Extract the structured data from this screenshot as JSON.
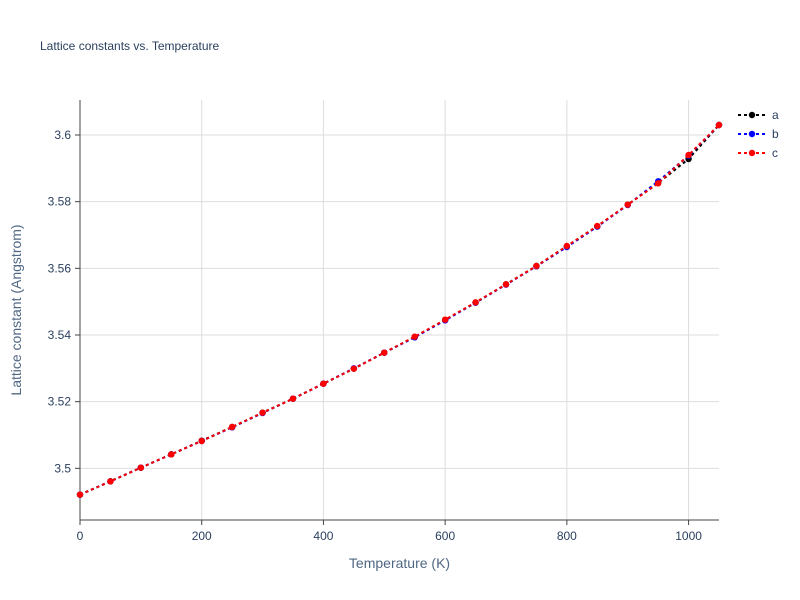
{
  "chart_data": {
    "type": "line",
    "title": "Lattice constants vs. Temperature",
    "xlabel": "Temperature (K)",
    "ylabel": "Lattice constant (Angstrom)",
    "xlim": [
      0,
      1050
    ],
    "ylim": [
      3.4845,
      3.6105
    ],
    "xticks": [
      0,
      200,
      400,
      600,
      800,
      1000
    ],
    "yticks": [
      3.5,
      3.52,
      3.54,
      3.56,
      3.58,
      3.6
    ],
    "xtick_labels": [
      "0",
      "200",
      "400",
      "600",
      "800",
      "1000"
    ],
    "ytick_labels": [
      "3.5",
      "3.52",
      "3.54",
      "3.56",
      "3.58",
      "3.6"
    ],
    "grid": true,
    "legend_position": "top-right",
    "x": [
      0,
      50,
      100,
      150,
      200,
      250,
      300,
      350,
      400,
      450,
      500,
      550,
      600,
      650,
      700,
      750,
      800,
      850,
      900,
      950,
      1000,
      1050
    ],
    "series": [
      {
        "name": "a",
        "color": "#000000",
        "values": [
          3.4921,
          3.4961,
          3.5002,
          3.5042,
          3.5083,
          3.5124,
          3.5167,
          3.5209,
          3.5254,
          3.5299,
          3.5347,
          3.5394,
          3.5445,
          3.5497,
          3.5552,
          3.5607,
          3.5666,
          3.5726,
          3.5791,
          3.5856,
          3.5928,
          3.603
        ]
      },
      {
        "name": "b",
        "color": "#0000ff",
        "values": [
          3.4921,
          3.4961,
          3.5002,
          3.5042,
          3.5082,
          3.5123,
          3.5166,
          3.5209,
          3.5254,
          3.53,
          3.5347,
          3.5393,
          3.5444,
          3.5497,
          3.5551,
          3.5606,
          3.5664,
          3.5725,
          3.579,
          3.5861,
          3.5938,
          3.603
        ]
      },
      {
        "name": "c",
        "color": "#ff0000",
        "values": [
          3.4921,
          3.4961,
          3.5002,
          3.5042,
          3.5082,
          3.5124,
          3.5167,
          3.5209,
          3.5254,
          3.5299,
          3.5347,
          3.5395,
          3.5446,
          3.5498,
          3.5552,
          3.5607,
          3.5667,
          3.5727,
          3.5791,
          3.5855,
          3.594,
          3.603
        ]
      }
    ]
  }
}
